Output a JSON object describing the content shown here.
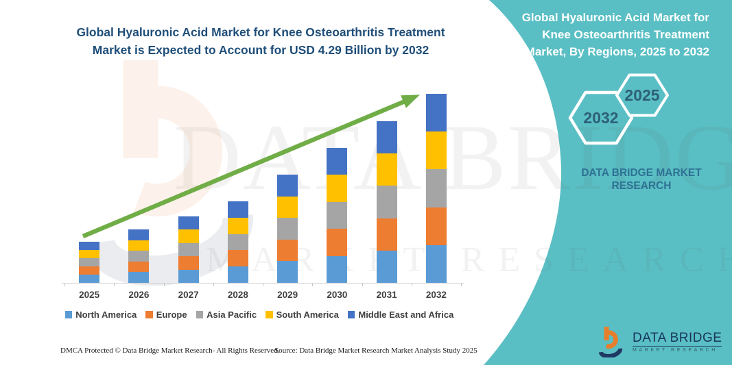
{
  "header": {
    "title_line1": "Global Hyaluronic Acid Market for Knee Osteoarthritis Treatment",
    "title_line2": "Market is Expected to Account for USD 4.29 Billion by 2032",
    "title_color": "#1F4E79"
  },
  "side_panel": {
    "accent_color": "#5ABFC4",
    "title_lines": [
      "Global Hyaluronic Acid Market for",
      "Knee Osteoarthritis Treatment",
      "Market, By Regions, 2025 to 2032"
    ],
    "hexagon_back_label": "2032",
    "hexagon_front_label": "2025",
    "brand_line1": "DATA BRIDGE MARKET",
    "brand_line2": "RESEARCH"
  },
  "watermark": {
    "line1": "DATA BRIDGE",
    "line2": "MARKET RESEARCH"
  },
  "footer": {
    "dmca": "DMCA Protected © Data Bridge Market Research-  All Rights Reserved.",
    "source": "Source: Data Bridge Market Research  Market Analysis Study 2025",
    "logo_title": "DATA BRIDGE",
    "logo_subtitle": "MARKET RESEARCH"
  },
  "chart_data": {
    "type": "bar",
    "stacked": true,
    "unit": "USD Billion",
    "categories": [
      "2025",
      "2026",
      "2027",
      "2028",
      "2029",
      "2030",
      "2031",
      "2032"
    ],
    "series": [
      {
        "name": "North America",
        "color": "#5B9BD5",
        "values": [
          0.186,
          0.242,
          0.304,
          0.37,
          0.492,
          0.612,
          0.734,
          0.858
        ]
      },
      {
        "name": "Europe",
        "color": "#ED7D31",
        "values": [
          0.186,
          0.242,
          0.304,
          0.37,
          0.492,
          0.612,
          0.734,
          0.858
        ]
      },
      {
        "name": "Asia Pacific",
        "color": "#A5A5A5",
        "values": [
          0.186,
          0.242,
          0.304,
          0.37,
          0.492,
          0.612,
          0.734,
          0.858
        ]
      },
      {
        "name": "South America",
        "color": "#FFC000",
        "values": [
          0.186,
          0.242,
          0.304,
          0.37,
          0.492,
          0.612,
          0.734,
          0.858
        ]
      },
      {
        "name": "Middle East and Africa",
        "color": "#4472C4",
        "values": [
          0.186,
          0.242,
          0.304,
          0.37,
          0.492,
          0.612,
          0.734,
          0.858
        ]
      }
    ],
    "totals_usd_billion": [
      0.93,
      1.21,
      1.52,
      1.85,
      2.46,
      3.06,
      3.67,
      4.29
    ],
    "values_estimated": true,
    "ylim": [
      0,
      4.5
    ],
    "grid": false,
    "legend_position": "bottom",
    "trend_line": {
      "show": true,
      "color": "#70AD47"
    }
  }
}
